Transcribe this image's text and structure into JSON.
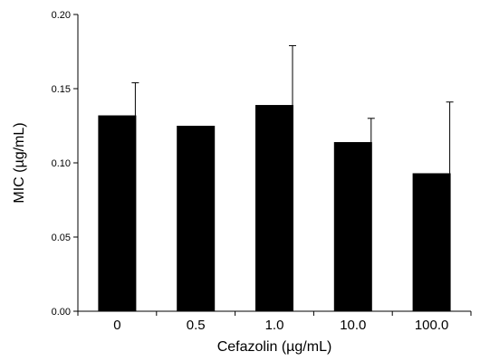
{
  "chart_data": {
    "type": "bar",
    "categories": [
      "0",
      "0.5",
      "1.0",
      "10.0",
      "100.0"
    ],
    "values": [
      0.132,
      0.125,
      0.139,
      0.114,
      0.093
    ],
    "errors": [
      0.022,
      0.0,
      0.04,
      0.016,
      0.048
    ],
    "xlabel": "Cefazolin (µg/mL)",
    "ylabel": "MIC (µg/mL)",
    "ylim": [
      0,
      0.2
    ],
    "yticks": [
      "0.00",
      "0.05",
      "0.10",
      "0.15",
      "0.20"
    ],
    "ytick_values": [
      0,
      0.05,
      0.1,
      0.15,
      0.2
    ],
    "bar_color": "#000000",
    "grid": false,
    "legend": "none"
  }
}
